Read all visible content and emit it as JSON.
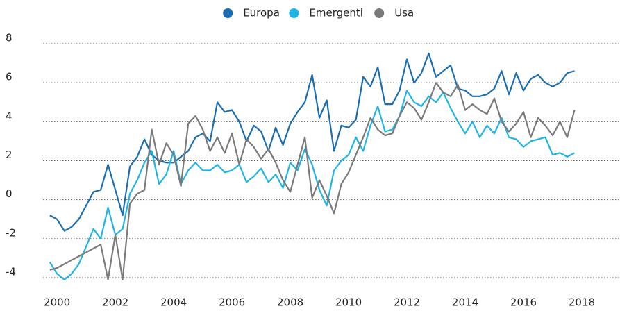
{
  "chart_data": {
    "type": "line",
    "x": [
      1999.75,
      2000,
      2000.25,
      2000.5,
      2000.75,
      2001,
      2001.25,
      2001.5,
      2001.75,
      2002,
      2002.25,
      2002.5,
      2002.75,
      2003,
      2003.25,
      2003.5,
      2003.75,
      2004,
      2004.25,
      2004.5,
      2004.75,
      2005,
      2005.25,
      2005.5,
      2005.75,
      2006,
      2006.25,
      2006.5,
      2006.75,
      2007,
      2007.25,
      2007.5,
      2007.75,
      2008,
      2008.25,
      2008.5,
      2008.75,
      2009,
      2009.25,
      2009.5,
      2009.75,
      2010,
      2010.25,
      2010.5,
      2010.75,
      2011,
      2011.25,
      2011.5,
      2011.75,
      2012,
      2012.25,
      2012.5,
      2012.75,
      2013,
      2013.25,
      2013.5,
      2013.75,
      2014,
      2014.25,
      2014.5,
      2014.75,
      2015,
      2015.25,
      2015.5,
      2015.75,
      2016,
      2016.25,
      2016.5,
      2016.75,
      2017,
      2017.25,
      2017.5,
      2017.75
    ],
    "series": [
      {
        "name": "Europa",
        "color": "#1a6db3",
        "values": [
          -0.8,
          -1.0,
          -1.6,
          -1.4,
          -1.0,
          -0.3,
          0.4,
          0.5,
          1.8,
          0.5,
          -0.8,
          1.7,
          2.2,
          3.1,
          2.3,
          2.0,
          1.9,
          1.9,
          2.2,
          2.5,
          3.2,
          3.4,
          3.0,
          5.0,
          4.5,
          4.6,
          4.0,
          3.0,
          3.8,
          3.5,
          2.5,
          3.7,
          2.8,
          3.9,
          4.5,
          5.0,
          6.4,
          4.2,
          5.1,
          2.5,
          3.8,
          3.7,
          4.1,
          6.3,
          5.8,
          6.8,
          4.9,
          4.9,
          5.6,
          7.2,
          6.0,
          6.5,
          7.5,
          6.3,
          6.6,
          6.9,
          5.7,
          5.6,
          5.3,
          5.3,
          5.4,
          5.7,
          6.6,
          5.4,
          6.5,
          5.6,
          6.2,
          6.4,
          6.0,
          5.8,
          6.0,
          6.5,
          6.6
        ]
      },
      {
        "name": "Emergenti",
        "color": "#1eb4e6",
        "values": [
          -3.2,
          -3.8,
          -4.1,
          -3.8,
          -3.3,
          -2.4,
          -1.5,
          -2.0,
          -0.4,
          -1.8,
          -1.5,
          0.3,
          1.0,
          1.9,
          2.5,
          0.8,
          1.3,
          2.5,
          0.8,
          1.5,
          1.9,
          1.5,
          1.5,
          1.8,
          1.4,
          1.5,
          1.8,
          0.9,
          1.2,
          1.6,
          0.9,
          1.3,
          0.6,
          1.9,
          1.5,
          2.6,
          1.8,
          0.5,
          -0.3,
          1.5,
          2.0,
          2.3,
          3.2,
          2.5,
          3.8,
          4.8,
          3.5,
          3.6,
          4.3,
          5.6,
          5.0,
          4.8,
          5.3,
          5.0,
          5.5,
          4.7,
          4.0,
          3.4,
          4.0,
          3.2,
          3.8,
          3.4,
          4.2,
          3.2,
          3.1,
          2.7,
          3.0,
          3.1,
          3.2,
          2.3,
          2.4,
          2.2,
          2.4
        ]
      },
      {
        "name": "Usa",
        "color": "#7a7a7a",
        "values": [
          -3.6,
          -3.5,
          -3.3,
          -3.1,
          -2.9,
          -2.7,
          -2.5,
          -2.3,
          -4.1,
          -1.8,
          -4.1,
          -0.2,
          0.3,
          0.5,
          3.6,
          1.8,
          2.9,
          2.3,
          0.7,
          3.9,
          4.3,
          3.6,
          2.5,
          3.2,
          2.4,
          3.4,
          1.8,
          3.1,
          2.7,
          2.1,
          2.6,
          1.9,
          1.0,
          0.4,
          1.8,
          3.2,
          0.1,
          1.0,
          0.2,
          -0.7,
          0.8,
          1.4,
          2.3,
          3.2,
          4.2,
          3.6,
          3.3,
          3.4,
          4.3,
          5.0,
          4.7,
          4.1,
          5.0,
          6.0,
          5.5,
          5.3,
          5.9,
          4.6,
          4.9,
          4.6,
          4.4,
          5.2,
          4.0,
          3.5,
          3.9,
          4.5,
          3.2,
          4.2,
          3.8,
          3.3,
          4.0,
          3.2,
          4.6
        ]
      }
    ],
    "xlim": [
      1999.52,
      2019.31
    ],
    "xticks": [
      2000,
      2002,
      2004,
      2006,
      2008,
      2010,
      2012,
      2014,
      2016,
      2018
    ],
    "ylim": [
      -4,
      8
    ],
    "yticks": [
      -4,
      -2,
      0,
      2,
      4,
      6,
      8
    ],
    "grid": true,
    "legend": "top"
  }
}
